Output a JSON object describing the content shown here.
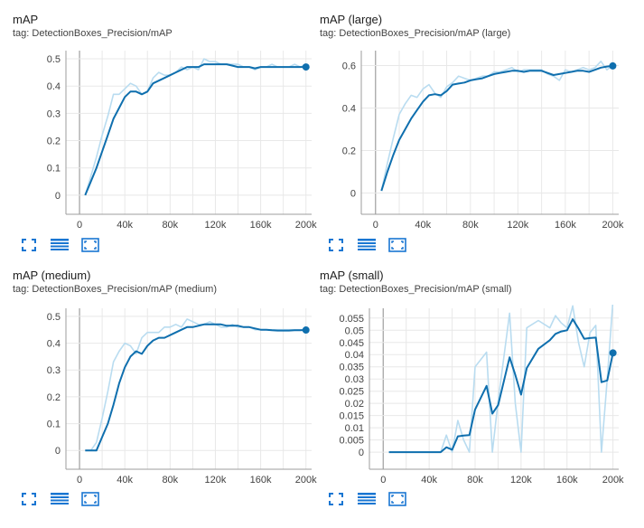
{
  "colors": {
    "smoothed": "#0f6fae",
    "raw": "#b9dcf0",
    "axis": "#9e9e9e",
    "grid": "#e8e8e8",
    "icon": "#1976d2"
  },
  "toolbar_icons": [
    "fullscreen-icon",
    "data-table-icon",
    "fit-domain-icon"
  ],
  "chart_data": [
    {
      "type": "line",
      "title": "mAP",
      "tag": "tag: DetectionBoxes_Precision/mAP",
      "xlim": [
        -12000,
        205000
      ],
      "ylim": [
        -0.07,
        0.53
      ],
      "x_ticks": [
        0,
        40000,
        80000,
        120000,
        160000,
        200000
      ],
      "x_tick_labels": [
        "0",
        "40k",
        "80k",
        "120k",
        "160k",
        "200k"
      ],
      "y_ticks": [
        0,
        0.1,
        0.2,
        0.3,
        0.4,
        0.5
      ],
      "y_tick_labels": [
        "0",
        "0.1",
        "0.2",
        "0.3",
        "0.4",
        "0.5"
      ],
      "grid": true,
      "series": [
        {
          "role": "raw",
          "x": [
            5000,
            10000,
            15000,
            20000,
            25000,
            30000,
            35000,
            40000,
            45000,
            50000,
            55000,
            60000,
            65000,
            70000,
            75000,
            80000,
            85000,
            90000,
            95000,
            100000,
            105000,
            110000,
            115000,
            120000,
            125000,
            130000,
            135000,
            140000,
            145000,
            150000,
            155000,
            160000,
            165000,
            170000,
            175000,
            180000,
            185000,
            190000,
            195000,
            200000
          ],
          "values": [
            0.0,
            0.07,
            0.14,
            0.22,
            0.29,
            0.37,
            0.37,
            0.39,
            0.41,
            0.4,
            0.37,
            0.38,
            0.43,
            0.45,
            0.44,
            0.44,
            0.45,
            0.47,
            0.46,
            0.47,
            0.46,
            0.5,
            0.49,
            0.49,
            0.48,
            0.48,
            0.48,
            0.48,
            0.47,
            0.47,
            0.46,
            0.47,
            0.47,
            0.48,
            0.47,
            0.47,
            0.47,
            0.48,
            0.47,
            0.48
          ]
        },
        {
          "role": "smoothed",
          "x": [
            5000,
            10000,
            15000,
            20000,
            25000,
            30000,
            35000,
            40000,
            45000,
            50000,
            55000,
            60000,
            65000,
            70000,
            75000,
            80000,
            85000,
            90000,
            95000,
            100000,
            105000,
            110000,
            115000,
            120000,
            125000,
            130000,
            135000,
            140000,
            145000,
            150000,
            155000,
            160000,
            165000,
            170000,
            175000,
            180000,
            185000,
            190000,
            195000,
            200000
          ],
          "values": [
            0.0,
            0.05,
            0.1,
            0.16,
            0.22,
            0.28,
            0.32,
            0.36,
            0.38,
            0.38,
            0.37,
            0.38,
            0.41,
            0.42,
            0.43,
            0.44,
            0.45,
            0.46,
            0.47,
            0.47,
            0.47,
            0.48,
            0.48,
            0.48,
            0.48,
            0.48,
            0.475,
            0.47,
            0.47,
            0.47,
            0.465,
            0.47,
            0.47,
            0.47,
            0.47,
            0.47,
            0.47,
            0.47,
            0.47,
            0.47
          ]
        }
      ]
    },
    {
      "type": "line",
      "title": "mAP (large)",
      "tag": "tag: DetectionBoxes_Precision/mAP (large)",
      "xlim": [
        -12000,
        205000
      ],
      "ylim": [
        -0.1,
        0.67
      ],
      "x_ticks": [
        0,
        40000,
        80000,
        120000,
        160000,
        200000
      ],
      "x_tick_labels": [
        "0",
        "40k",
        "80k",
        "120k",
        "160k",
        "200k"
      ],
      "y_ticks": [
        0,
        0.2,
        0.4,
        0.6
      ],
      "y_tick_labels": [
        "0",
        "0.2",
        "0.4",
        "0.6"
      ],
      "grid": true,
      "series": [
        {
          "role": "raw",
          "x": [
            5000,
            10000,
            15000,
            20000,
            25000,
            30000,
            35000,
            40000,
            45000,
            50000,
            55000,
            60000,
            65000,
            70000,
            75000,
            80000,
            85000,
            90000,
            95000,
            100000,
            105000,
            110000,
            115000,
            120000,
            125000,
            130000,
            135000,
            140000,
            145000,
            150000,
            155000,
            160000,
            165000,
            170000,
            175000,
            180000,
            185000,
            190000,
            195000,
            200000
          ],
          "values": [
            0.01,
            0.14,
            0.26,
            0.37,
            0.42,
            0.46,
            0.45,
            0.49,
            0.51,
            0.47,
            0.45,
            0.5,
            0.52,
            0.55,
            0.54,
            0.53,
            0.54,
            0.55,
            0.55,
            0.57,
            0.57,
            0.58,
            0.59,
            0.57,
            0.58,
            0.58,
            0.58,
            0.58,
            0.56,
            0.55,
            0.53,
            0.58,
            0.57,
            0.58,
            0.59,
            0.58,
            0.59,
            0.62,
            0.58,
            0.6
          ]
        },
        {
          "role": "smoothed",
          "x": [
            5000,
            10000,
            15000,
            20000,
            25000,
            30000,
            35000,
            40000,
            45000,
            50000,
            55000,
            60000,
            65000,
            70000,
            75000,
            80000,
            85000,
            90000,
            95000,
            100000,
            105000,
            110000,
            115000,
            120000,
            125000,
            130000,
            135000,
            140000,
            145000,
            150000,
            155000,
            160000,
            165000,
            170000,
            175000,
            180000,
            185000,
            190000,
            195000,
            200000
          ],
          "values": [
            0.01,
            0.1,
            0.18,
            0.25,
            0.3,
            0.35,
            0.39,
            0.43,
            0.46,
            0.465,
            0.46,
            0.48,
            0.51,
            0.515,
            0.52,
            0.53,
            0.535,
            0.54,
            0.55,
            0.56,
            0.565,
            0.57,
            0.575,
            0.575,
            0.57,
            0.575,
            0.575,
            0.575,
            0.565,
            0.555,
            0.56,
            0.565,
            0.57,
            0.575,
            0.575,
            0.57,
            0.58,
            0.59,
            0.595,
            0.598
          ]
        }
      ]
    },
    {
      "type": "line",
      "title": "mAP (medium)",
      "tag": "tag: DetectionBoxes_Precision/mAP (medium)",
      "xlim": [
        -12000,
        205000
      ],
      "ylim": [
        -0.07,
        0.53
      ],
      "x_ticks": [
        0,
        40000,
        80000,
        120000,
        160000,
        200000
      ],
      "x_tick_labels": [
        "0",
        "40k",
        "80k",
        "120k",
        "160k",
        "200k"
      ],
      "y_ticks": [
        0,
        0.1,
        0.2,
        0.3,
        0.4,
        0.5
      ],
      "y_tick_labels": [
        "0",
        "0.1",
        "0.2",
        "0.3",
        "0.4",
        "0.5"
      ],
      "grid": true,
      "series": [
        {
          "role": "raw",
          "x": [
            5000,
            10000,
            15000,
            20000,
            25000,
            30000,
            35000,
            40000,
            45000,
            50000,
            55000,
            60000,
            65000,
            70000,
            75000,
            80000,
            85000,
            90000,
            95000,
            100000,
            105000,
            110000,
            115000,
            120000,
            125000,
            130000,
            135000,
            140000,
            145000,
            150000,
            155000,
            160000,
            165000,
            170000,
            175000,
            180000,
            185000,
            190000,
            195000,
            200000
          ],
          "values": [
            0.0,
            0.0,
            0.03,
            0.12,
            0.22,
            0.33,
            0.37,
            0.4,
            0.39,
            0.36,
            0.42,
            0.44,
            0.44,
            0.44,
            0.46,
            0.46,
            0.47,
            0.46,
            0.49,
            0.48,
            0.47,
            0.47,
            0.48,
            0.47,
            0.46,
            0.46,
            0.47,
            0.46,
            0.46,
            0.46,
            0.45,
            0.45,
            0.45,
            0.45,
            0.45,
            0.45,
            0.45,
            0.45,
            0.45,
            0.45
          ]
        },
        {
          "role": "smoothed",
          "x": [
            5000,
            10000,
            15000,
            20000,
            25000,
            30000,
            35000,
            40000,
            45000,
            50000,
            55000,
            60000,
            65000,
            70000,
            75000,
            80000,
            85000,
            90000,
            95000,
            100000,
            105000,
            110000,
            115000,
            120000,
            125000,
            130000,
            135000,
            140000,
            145000,
            150000,
            155000,
            160000,
            165000,
            170000,
            175000,
            180000,
            185000,
            190000,
            195000,
            200000
          ],
          "values": [
            0.0,
            0.0,
            0.0,
            0.05,
            0.1,
            0.17,
            0.25,
            0.31,
            0.35,
            0.37,
            0.36,
            0.39,
            0.41,
            0.42,
            0.42,
            0.43,
            0.44,
            0.45,
            0.46,
            0.46,
            0.465,
            0.47,
            0.47,
            0.47,
            0.47,
            0.465,
            0.465,
            0.465,
            0.46,
            0.46,
            0.455,
            0.45,
            0.45,
            0.448,
            0.447,
            0.447,
            0.447,
            0.448,
            0.448,
            0.449
          ]
        }
      ]
    },
    {
      "type": "line",
      "title": "mAP (small)",
      "tag": "tag: DetectionBoxes_Precision/mAP (small)",
      "xlim": [
        -12000,
        205000
      ],
      "ylim": [
        -0.007,
        0.059
      ],
      "x_ticks": [
        0,
        40000,
        80000,
        120000,
        160000,
        200000
      ],
      "x_tick_labels": [
        "0",
        "40k",
        "80k",
        "120k",
        "160k",
        "200k"
      ],
      "y_ticks": [
        0,
        0.005,
        0.01,
        0.015,
        0.02,
        0.025,
        0.03,
        0.035,
        0.04,
        0.045,
        0.05,
        0.055
      ],
      "y_tick_labels": [
        "0",
        "0.005",
        "0.01",
        "0.015",
        "0.02",
        "0.025",
        "0.03",
        "0.035",
        "0.04",
        "0.045",
        "0.05",
        "0.055"
      ],
      "grid": true,
      "series": [
        {
          "role": "raw",
          "x": [
            5000,
            10000,
            15000,
            20000,
            25000,
            30000,
            35000,
            40000,
            45000,
            50000,
            55000,
            60000,
            65000,
            70000,
            75000,
            80000,
            90000,
            95000,
            100000,
            110000,
            115000,
            120000,
            125000,
            135000,
            145000,
            150000,
            155000,
            160000,
            165000,
            170000,
            175000,
            180000,
            185000,
            190000,
            195000,
            200000
          ],
          "values": [
            0.0,
            0.0,
            0.0,
            0.0,
            0.0,
            0.0,
            0.0,
            0.0,
            0.0,
            0.0,
            0.007,
            0.0,
            0.013,
            0.005,
            0.0,
            0.035,
            0.041,
            0.0,
            0.021,
            0.057,
            0.02,
            0.0,
            0.051,
            0.054,
            0.051,
            0.056,
            0.053,
            0.051,
            0.06,
            0.045,
            0.035,
            0.049,
            0.052,
            0.0,
            0.03,
            0.062
          ]
        },
        {
          "role": "smoothed",
          "x": [
            5000,
            10000,
            15000,
            20000,
            25000,
            30000,
            35000,
            40000,
            45000,
            50000,
            55000,
            60000,
            65000,
            70000,
            75000,
            80000,
            90000,
            95000,
            100000,
            110000,
            115000,
            120000,
            125000,
            135000,
            145000,
            150000,
            155000,
            160000,
            165000,
            170000,
            175000,
            180000,
            185000,
            190000,
            195000,
            200000
          ],
          "values": [
            0.0,
            0.0,
            0.0,
            0.0,
            0.0,
            0.0,
            0.0,
            0.0,
            0.0,
            0.0,
            0.002,
            0.001,
            0.0065,
            0.0068,
            0.007,
            0.0175,
            0.0272,
            0.0158,
            0.0193,
            0.0389,
            0.0317,
            0.0236,
            0.0345,
            0.0424,
            0.0459,
            0.0485,
            0.0495,
            0.05,
            0.0545,
            0.0507,
            0.0465,
            0.0468,
            0.047,
            0.0287,
            0.0294,
            0.0407
          ]
        }
      ]
    }
  ]
}
